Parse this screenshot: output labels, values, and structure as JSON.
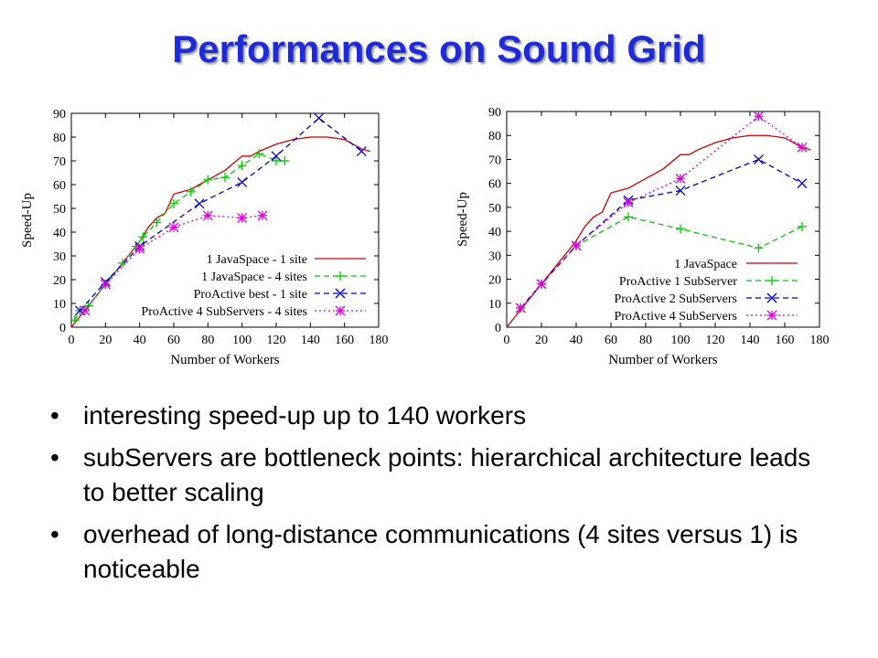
{
  "slide": {
    "title": "Performances on Sound Grid",
    "bullets": [
      "interesting speed-up up to 140 workers",
      "subServers are bottleneck points: hierarchical architecture leads to better scaling",
      "overhead of long-distance communications (4 sites versus 1) is noticeable"
    ]
  },
  "chart_data": [
    {
      "type": "line",
      "xlabel": "Number of Workers",
      "ylabel": "Speed-Up",
      "xlim": [
        0,
        180
      ],
      "ylim": [
        0,
        90
      ],
      "xticks": [
        0,
        20,
        40,
        60,
        80,
        100,
        120,
        140,
        160,
        180
      ],
      "yticks": [
        0,
        10,
        20,
        30,
        40,
        50,
        60,
        70,
        80,
        90
      ],
      "legend_position": "bottom-right",
      "series": [
        {
          "name": "1 JavaSpace - 1 site",
          "color": "#cc0000",
          "style": "solid",
          "marker": "none",
          "x": [
            0,
            10,
            20,
            30,
            40,
            45,
            50,
            55,
            60,
            65,
            70,
            75,
            80,
            90,
            100,
            105,
            110,
            120,
            130,
            140,
            150,
            160,
            170,
            175
          ],
          "y": [
            0,
            9,
            18,
            27,
            36,
            42,
            46,
            48,
            56,
            57,
            58,
            60,
            62,
            66,
            72,
            72,
            74,
            77,
            79,
            80,
            80,
            79,
            75,
            74
          ]
        },
        {
          "name": "1 JavaSpace - 4 sites",
          "color": "#00cc00",
          "style": "dashed",
          "marker": "+",
          "x": [
            2,
            5,
            10,
            20,
            30,
            38,
            42,
            50,
            60,
            70,
            80,
            90,
            100,
            110,
            120,
            125
          ],
          "y": [
            3,
            7,
            9,
            18,
            27,
            34,
            38,
            44,
            52,
            57,
            62,
            63,
            68,
            73,
            70,
            70
          ]
        },
        {
          "name": "ProActive best - 1 site",
          "color": "#0000cc",
          "style": "dashed",
          "marker": "x",
          "x": [
            5,
            20,
            40,
            75,
            100,
            120,
            145,
            170
          ],
          "y": [
            7,
            19,
            34,
            52,
            61,
            72,
            88,
            74
          ]
        },
        {
          "name": "ProActive 4 SubServers - 4 sites",
          "color": "#dd00dd",
          "style": "dotted",
          "marker": "*",
          "x": [
            8,
            20,
            40,
            60,
            80,
            100,
            112
          ],
          "y": [
            7,
            18,
            33,
            42,
            47,
            46,
            47
          ]
        }
      ]
    },
    {
      "type": "line",
      "xlabel": "Number of Workers",
      "ylabel": "Speed-Up",
      "xlim": [
        0,
        180
      ],
      "ylim": [
        0,
        90
      ],
      "xticks": [
        0,
        20,
        40,
        60,
        80,
        100,
        120,
        140,
        160,
        180
      ],
      "yticks": [
        0,
        10,
        20,
        30,
        40,
        50,
        60,
        70,
        80,
        90
      ],
      "legend_position": "bottom-right",
      "series": [
        {
          "name": "1 JavaSpace",
          "color": "#cc0000",
          "style": "solid",
          "marker": "none",
          "x": [
            0,
            10,
            20,
            30,
            40,
            45,
            50,
            55,
            60,
            65,
            70,
            75,
            80,
            90,
            100,
            105,
            110,
            120,
            130,
            140,
            150,
            160,
            170,
            175
          ],
          "y": [
            0,
            9,
            18,
            27,
            36,
            42,
            46,
            48,
            56,
            57,
            58,
            60,
            62,
            66,
            72,
            72,
            74,
            77,
            79,
            80,
            80,
            79,
            75,
            74
          ]
        },
        {
          "name": "ProActive 1 SubServer",
          "color": "#00cc00",
          "style": "dashed",
          "marker": "+",
          "x": [
            8,
            20,
            40,
            70,
            100,
            145,
            170
          ],
          "y": [
            8,
            18,
            34,
            46,
            41,
            33,
            42
          ]
        },
        {
          "name": "ProActive 2 SubServers",
          "color": "#0000cc",
          "style": "dashed",
          "marker": "x",
          "x": [
            8,
            20,
            40,
            70,
            100,
            145,
            170
          ],
          "y": [
            8,
            18,
            34,
            53,
            57,
            70,
            60
          ]
        },
        {
          "name": "ProActive 4 SubServers",
          "color": "#dd00dd",
          "style": "dotted",
          "marker": "*",
          "x": [
            8,
            20,
            40,
            70,
            100,
            145,
            170
          ],
          "y": [
            8,
            18,
            34,
            52,
            62,
            88,
            75
          ]
        }
      ]
    }
  ]
}
